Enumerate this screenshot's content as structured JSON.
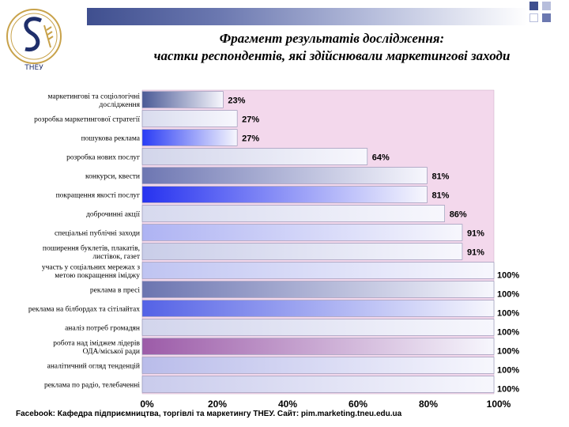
{
  "logo_text": "ТНЕУ",
  "title_line1": "Фрагмент результатів дослідження:",
  "title_line2": "частки респондентів, які  здійснювали маркетингові заходи",
  "footer": "Facebook: Кафедра підприємництва, торгівлі та маркетингу ТНЕУ. Сайт: pim.marketing.tneu.edu.ua",
  "colors": {
    "band_dark": "#3f4f8f",
    "plot_bg": "#f3d8ec",
    "accent_square": "#b7bedc"
  },
  "chart_data": {
    "type": "bar",
    "orientation": "horizontal",
    "categories": [
      "маркетингові та соціологічні дослідження",
      "розробка маркетингової стратегії",
      "пошукова реклама",
      "розробка нових послуг",
      "конкурси, квести",
      "покращення якості послуг",
      "доброчинні акції",
      "спеціальні публічні заходи",
      "поширення буклетів, плакатів, листівок, газет",
      "участь у соціальних мережах з метою покращення іміджу",
      "реклама в пресі",
      "реклама на білбордах та сітілайтах",
      "аналіз потреб громадян",
      "робота над іміджем лідерів ОДА/міської ради",
      "аналітичний огляд тенденцій",
      "реклама по радіо, телебаченні"
    ],
    "values": [
      23,
      27,
      27,
      64,
      81,
      81,
      86,
      91,
      91,
      100,
      100,
      100,
      100,
      100,
      100,
      100
    ],
    "value_labels": [
      "23%",
      "27%",
      "27%",
      "64%",
      "81%",
      "81%",
      "86%",
      "91%",
      "91%",
      "100%",
      "100%",
      "100%",
      "100%",
      "100%",
      "100%",
      "100%"
    ],
    "category_label_lines": [
      [
        "маркетингові та соціологічні",
        "дослідження"
      ],
      [
        "розробка маркетингової стратегії"
      ],
      [
        "пошукова реклама"
      ],
      [
        "розробка нових послуг"
      ],
      [
        "конкурси, квести"
      ],
      [
        "покращення якості послуг"
      ],
      [
        "доброчинні акції"
      ],
      [
        "спеціальні публічні заходи"
      ],
      [
        "поширення буклетів, плакатів,",
        "листівок, газет"
      ],
      [
        "участь у соціальних мережах з",
        "метою покращення іміджу"
      ],
      [
        "реклама в пресі"
      ],
      [
        "реклама на білбордах та сітілайтах"
      ],
      [
        "аналіз потреб громадян"
      ],
      [
        "робота над іміджем лідерів",
        "ОДА/міської ради"
      ],
      [
        "аналітичний огляд тенденцій"
      ],
      [
        "реклама по радіо, телебаченні"
      ]
    ],
    "bar_colors": [
      "#4b5a96",
      "#d9dcee",
      "#2a3cf5",
      "#d2d5ea",
      "#6d76b2",
      "#2632f0",
      "#d6d9ee",
      "#aeb3f3",
      "#c9cde8",
      "#bfc4f2",
      "#6b74b0",
      "#5462e6",
      "#d2d5ec",
      "#9c5ba8",
      "#b9bcea",
      "#c9cbec"
    ],
    "xlim": [
      0,
      100
    ],
    "xticks": [
      "0%",
      "20%",
      "40%",
      "60%",
      "80%",
      "100%"
    ],
    "grid": false
  }
}
